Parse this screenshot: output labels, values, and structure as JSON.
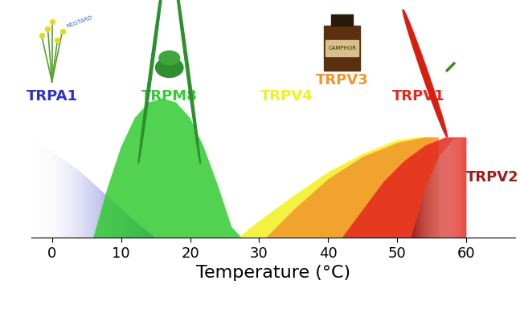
{
  "chart_data": {
    "type": "area",
    "x_label": "Temperature (°C)",
    "xlim": [
      -3,
      67
    ],
    "xticks": [
      0,
      10,
      20,
      30,
      40,
      50,
      60
    ],
    "ylim": [
      0,
      1.66
    ],
    "tick_labels": "x",
    "grid": false,
    "series": [
      {
        "name": "TRPA1",
        "color": "#3030c8",
        "icon_text": "MUSTARD",
        "x": [
          -3,
          0,
          4,
          8,
          12,
          15
        ],
        "values": [
          0.74,
          0.62,
          0.48,
          0.3,
          0.12,
          0
        ]
      },
      {
        "name": "TRPM8",
        "color": "#33cc33",
        "x": [
          6,
          8,
          10,
          12,
          14,
          16,
          18,
          20,
          22,
          24,
          26,
          27.5
        ],
        "values": [
          0,
          0.35,
          0.65,
          0.86,
          0.97,
          1.0,
          0.97,
          0.86,
          0.65,
          0.38,
          0.08,
          0
        ]
      },
      {
        "name": "TRPV4",
        "color": "#f2f020",
        "x": [
          27,
          30,
          35,
          40,
          45,
          50,
          53,
          55
        ],
        "values": [
          0,
          0.12,
          0.3,
          0.47,
          0.6,
          0.7,
          0.72,
          0.72
        ]
      },
      {
        "name": "TRPV3",
        "color": "#f0962a",
        "icon_text": "CAMPHOR",
        "x": [
          31,
          35,
          40,
          45,
          50,
          54,
          56
        ],
        "values": [
          0,
          0.2,
          0.42,
          0.58,
          0.68,
          0.72,
          0.72
        ]
      },
      {
        "name": "TRPV1",
        "color": "#e4281e",
        "x": [
          42,
          45,
          48,
          51,
          54,
          57,
          60
        ],
        "values": [
          0,
          0.2,
          0.4,
          0.55,
          0.66,
          0.72,
          0.72
        ]
      },
      {
        "name": "TRPV2",
        "color": "#9e1c1c",
        "x": [
          52,
          54,
          56,
          58,
          60
        ],
        "values": [
          0,
          0.35,
          0.58,
          0.7,
          0.74
        ]
      }
    ]
  }
}
